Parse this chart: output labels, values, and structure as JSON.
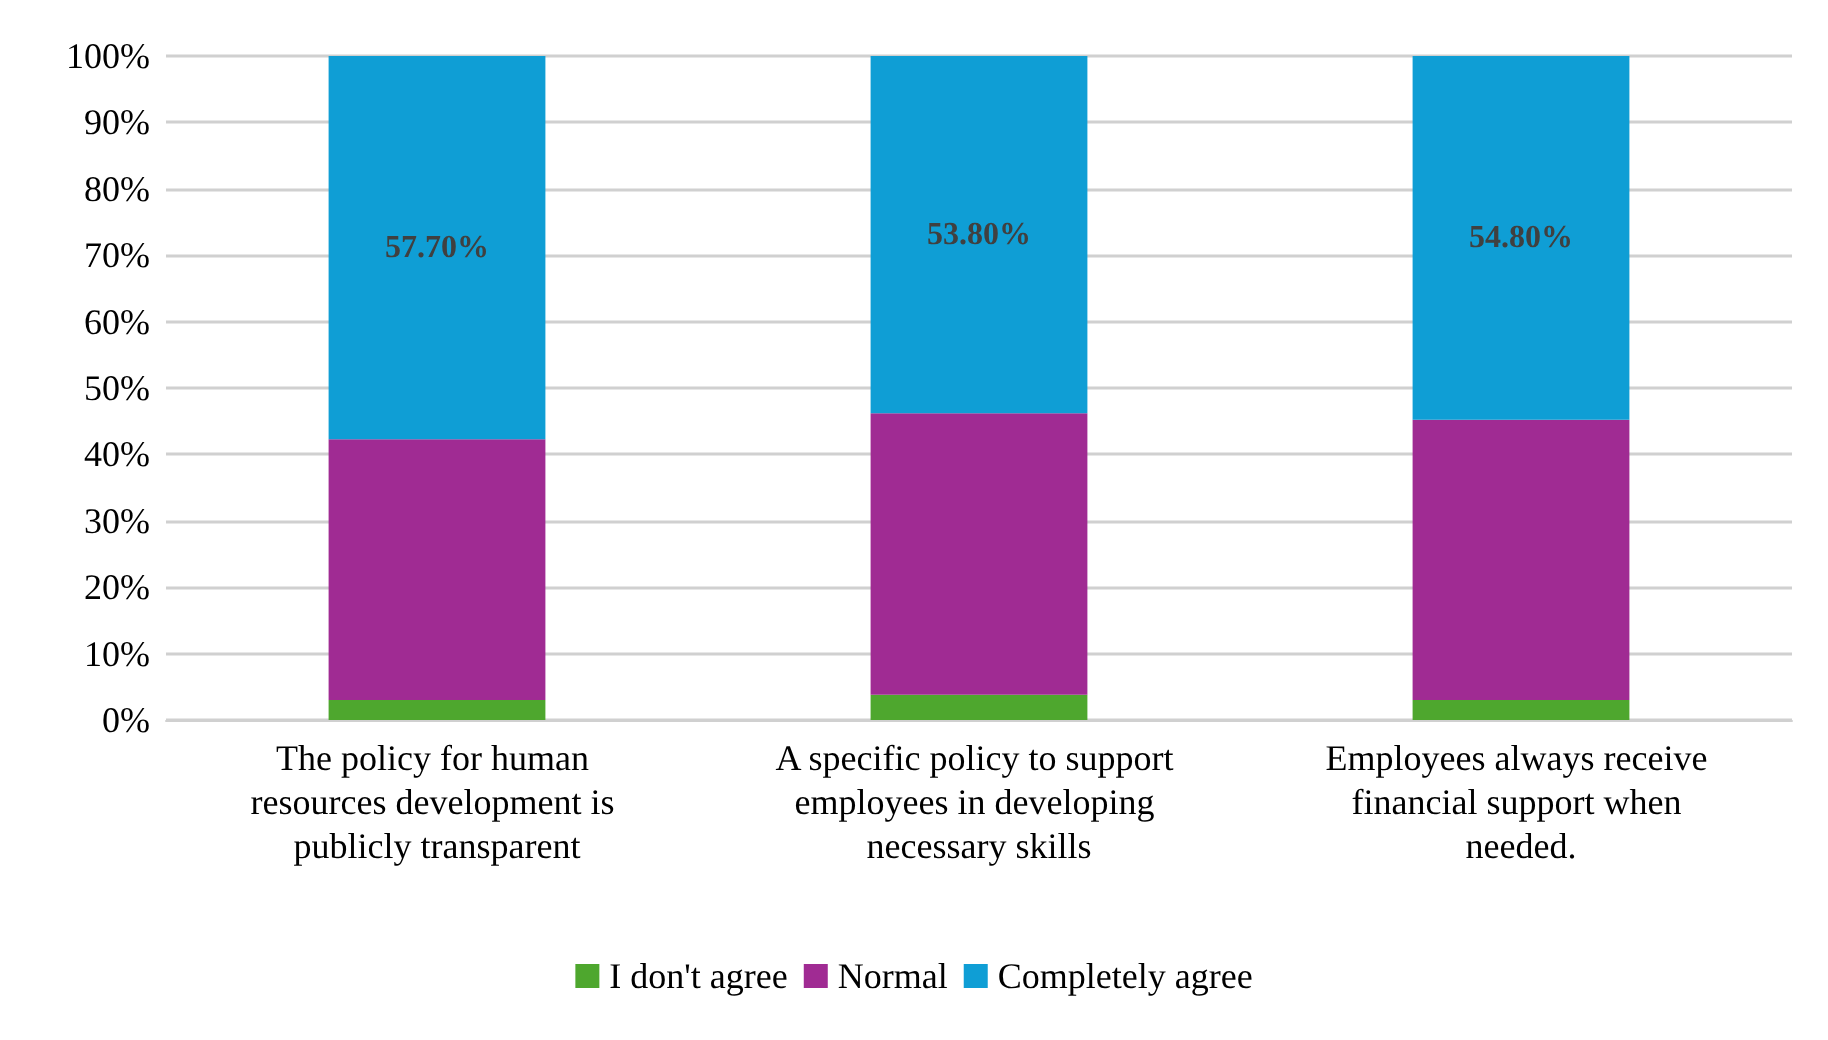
{
  "chart_data": {
    "type": "bar",
    "stacked": true,
    "categories": [
      "The policy for human resources development is publicly transparent",
      "A specific policy to support employees in developing necessary skills",
      "Employees always receive financial support when needed."
    ],
    "series": [
      {
        "name": "I don't agree",
        "color": "#4ea72e",
        "values": [
          3.0,
          3.8,
          3.0
        ]
      },
      {
        "name": "Normal",
        "color": "#a02b93",
        "values": [
          39.3,
          42.4,
          42.2
        ]
      },
      {
        "name": "Completely agree",
        "color": "#0f9ed5",
        "values": [
          57.7,
          53.8,
          54.8
        ],
        "value_labels": [
          "57.70%",
          "53.80%",
          "54.80%"
        ]
      }
    ],
    "ylim": [
      0,
      100
    ],
    "yticks": [
      {
        "value": 0,
        "label": "0%"
      },
      {
        "value": 10,
        "label": "10%"
      },
      {
        "value": 20,
        "label": "20%"
      },
      {
        "value": 30,
        "label": "30%"
      },
      {
        "value": 40,
        "label": "40%"
      },
      {
        "value": 50,
        "label": "50%"
      },
      {
        "value": 60,
        "label": "60%"
      },
      {
        "value": 70,
        "label": "70%"
      },
      {
        "value": 80,
        "label": "80%"
      },
      {
        "value": 90,
        "label": "90%"
      },
      {
        "value": 100,
        "label": "100%"
      }
    ],
    "grid": "y",
    "legend": "bottom"
  }
}
